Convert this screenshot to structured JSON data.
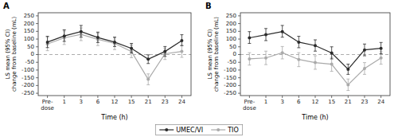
{
  "chart_data": [
    {
      "type": "line",
      "title": "A",
      "xlabel": "Time (h)",
      "ylabel": "LS mean (95% CI)\nchange from baseline (mL)",
      "categories": [
        "Pre-\ndose",
        "1",
        "3",
        "6",
        "12",
        "15",
        "21",
        "23",
        "24"
      ],
      "series": [
        {
          "name": "UMEC/VI",
          "color": "#2b2b2b",
          "marker": "circle",
          "values": [
            80,
            120,
            148,
            110,
            80,
            40,
            -30,
            20,
            90
          ],
          "error_low": [
            45,
            85,
            112,
            78,
            52,
            10,
            -58,
            -12,
            58
          ],
          "error_high": [
            118,
            160,
            188,
            145,
            112,
            72,
            -2,
            52,
            128
          ]
        },
        {
          "name": "TIO",
          "color": "#aaaaaa",
          "marker": "circle",
          "values": [
            68,
            108,
            130,
            98,
            72,
            20,
            -160,
            5,
            20
          ],
          "error_low": [
            25,
            65,
            90,
            58,
            32,
            -20,
            -195,
            -32,
            -18
          ],
          "error_high": [
            112,
            152,
            172,
            138,
            112,
            62,
            -125,
            42,
            58
          ]
        }
      ],
      "ylim": [
        -265,
        270
      ],
      "yticks": [
        -250,
        -200,
        -150,
        -100,
        -50,
        0,
        50,
        100,
        150,
        200,
        250
      ],
      "grid": false,
      "legend": "bottom"
    },
    {
      "type": "line",
      "title": "B",
      "xlabel": "Time (h)",
      "ylabel": "LS mean (95% CI)\nchange from baseline (mL)",
      "categories": [
        "Pre-\ndose",
        "1",
        "3",
        "6",
        "12",
        "15",
        "21",
        "23",
        "24"
      ],
      "series": [
        {
          "name": "UMEC/VI",
          "color": "#2b2b2b",
          "marker": "circle",
          "values": [
            108,
            128,
            148,
            80,
            58,
            10,
            -95,
            30,
            40
          ],
          "error_low": [
            72,
            90,
            112,
            44,
            22,
            -28,
            -128,
            -8,
            5
          ],
          "error_high": [
            148,
            168,
            188,
            118,
            95,
            50,
            -62,
            68,
            78
          ]
        },
        {
          "name": "TIO",
          "color": "#aaaaaa",
          "marker": "circle",
          "values": [
            -28,
            -22,
            12,
            -32,
            -52,
            -62,
            -195,
            -90,
            -22
          ],
          "error_low": [
            -68,
            -65,
            -28,
            -78,
            -95,
            -108,
            -232,
            -128,
            -62
          ],
          "error_high": [
            12,
            22,
            52,
            12,
            -8,
            -18,
            -158,
            -52,
            18
          ]
        }
      ],
      "ylim": [
        -265,
        270
      ],
      "yticks": [
        -250,
        -200,
        -150,
        -100,
        -50,
        0,
        50,
        100,
        150,
        200,
        250
      ],
      "grid": false,
      "legend": "bottom"
    }
  ]
}
